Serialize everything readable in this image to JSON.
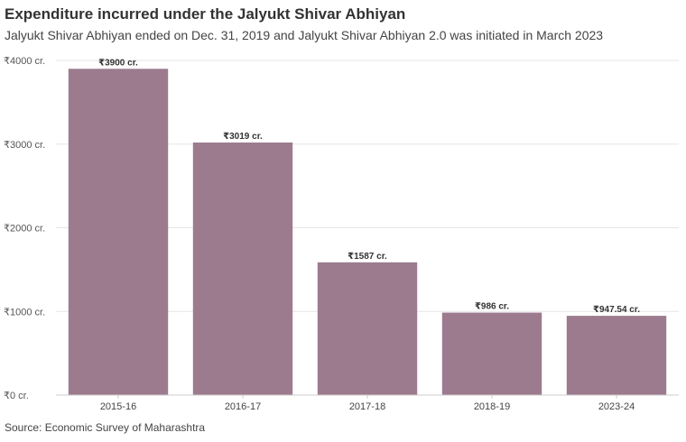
{
  "chart_data": {
    "type": "bar",
    "title": "Expenditure incurred under the Jalyukt Shivar Abhiyan",
    "subtitle": "Jalyukt Shivar Abhiyan ended on Dec. 31, 2019 and Jalyukt Shivar Abhiyan 2.0 was initiated in March 2023",
    "source": "Source: Economic Survey of Maharashtra",
    "categories": [
      "2015-16",
      "2016-17",
      "2017-18",
      "2018-19",
      "2023-24"
    ],
    "values": [
      3900,
      3019,
      1587,
      986,
      947.54
    ],
    "data_labels": [
      "₹3900 cr.",
      "₹3019 cr.",
      "₹1587 cr.",
      "₹986 cr.",
      "₹947.54 cr."
    ],
    "yticks": [
      0,
      1000,
      2000,
      3000,
      4000
    ],
    "ytick_labels": [
      "₹0 cr.",
      "₹1000 cr.",
      "₹2000 cr.",
      "₹3000 cr.",
      "₹4000 cr."
    ],
    "ylim": [
      0,
      4000
    ],
    "xlabel": "",
    "ylabel": "",
    "grid": true,
    "bar_color": "#9c7b8e"
  }
}
